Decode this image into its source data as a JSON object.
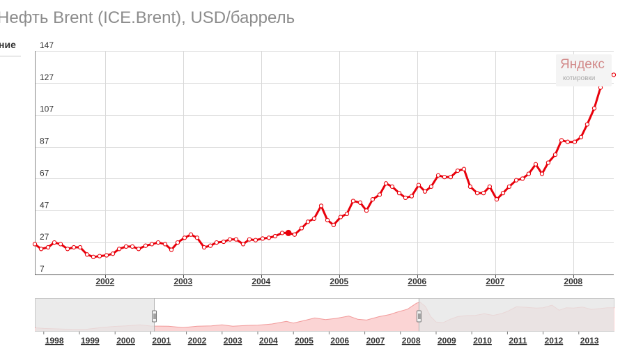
{
  "title": "Нефть Brent (ICE.Brent), USD/баррель",
  "side_tab_label": "ние",
  "logo": {
    "brand": "Яндекс",
    "subtitle": "котировки"
  },
  "colors": {
    "line": "#e8000b",
    "grid": "#d9d9d9",
    "nav_fill": "#fbd4d4",
    "nav_line": "#f29a9a",
    "nav_mask": "#e6e6e6"
  },
  "chart_data": [
    {
      "type": "line",
      "title": "Нефть Brent (ICE.Brent), USD/баррель",
      "xlabel": "",
      "ylabel": "",
      "ylim": [
        7,
        147
      ],
      "yticks": [
        7,
        27,
        47,
        67,
        87,
        107,
        127,
        147
      ],
      "xlim": [
        2001.1,
        2008.52
      ],
      "xticks": [
        {
          "label": "2002",
          "x": 2002.0
        },
        {
          "label": "2003",
          "x": 2003.0
        },
        {
          "label": "2004",
          "x": 2004.0
        },
        {
          "label": "2005",
          "x": 2005.0
        },
        {
          "label": "2006",
          "x": 2006.0
        },
        {
          "label": "2007",
          "x": 2007.0
        },
        {
          "label": "2008",
          "x": 2008.0
        }
      ],
      "grid": true,
      "highlighted_point": {
        "x": 2004.35,
        "y": 33
      },
      "series": [
        {
          "points": [
            [
              2001.1,
              26
            ],
            [
              2001.18,
              23
            ],
            [
              2001.27,
              24
            ],
            [
              2001.35,
              27
            ],
            [
              2001.43,
              26
            ],
            [
              2001.52,
              23
            ],
            [
              2001.6,
              24
            ],
            [
              2001.68,
              24
            ],
            [
              2001.77,
              19.5
            ],
            [
              2001.85,
              18
            ],
            [
              2001.93,
              18.5
            ],
            [
              2002.02,
              19
            ],
            [
              2002.1,
              20
            ],
            [
              2002.18,
              23
            ],
            [
              2002.27,
              24.5
            ],
            [
              2002.35,
              24.5
            ],
            [
              2002.43,
              23
            ],
            [
              2002.52,
              25
            ],
            [
              2002.6,
              26
            ],
            [
              2002.68,
              27
            ],
            [
              2002.77,
              26
            ],
            [
              2002.85,
              22.5
            ],
            [
              2002.93,
              27
            ],
            [
              2003.02,
              30
            ],
            [
              2003.1,
              32
            ],
            [
              2003.18,
              30
            ],
            [
              2003.27,
              24
            ],
            [
              2003.35,
              25
            ],
            [
              2003.43,
              27
            ],
            [
              2003.52,
              27.5
            ],
            [
              2003.6,
              29
            ],
            [
              2003.68,
              29
            ],
            [
              2003.77,
              26
            ],
            [
              2003.85,
              29
            ],
            [
              2003.93,
              28.5
            ],
            [
              2004.02,
              29.5
            ],
            [
              2004.1,
              30
            ],
            [
              2004.18,
              31
            ],
            [
              2004.27,
              33
            ],
            [
              2004.35,
              33
            ],
            [
              2004.43,
              32
            ],
            [
              2004.52,
              36
            ],
            [
              2004.6,
              40
            ],
            [
              2004.68,
              42
            ],
            [
              2004.77,
              50
            ],
            [
              2004.85,
              41
            ],
            [
              2004.93,
              38
            ],
            [
              2005.02,
              43
            ],
            [
              2005.1,
              45
            ],
            [
              2005.18,
              53
            ],
            [
              2005.27,
              52
            ],
            [
              2005.35,
              47
            ],
            [
              2005.43,
              54
            ],
            [
              2005.52,
              57
            ],
            [
              2005.6,
              64
            ],
            [
              2005.68,
              62
            ],
            [
              2005.77,
              58
            ],
            [
              2005.85,
              55
            ],
            [
              2005.93,
              56
            ],
            [
              2006.02,
              63
            ],
            [
              2006.1,
              59
            ],
            [
              2006.18,
              62
            ],
            [
              2006.27,
              69
            ],
            [
              2006.35,
              68
            ],
            [
              2006.43,
              68
            ],
            [
              2006.52,
              72
            ],
            [
              2006.6,
              73
            ],
            [
              2006.68,
              62
            ],
            [
              2006.77,
              58
            ],
            [
              2006.85,
              58
            ],
            [
              2006.93,
              62
            ],
            [
              2007.02,
              54
            ],
            [
              2007.1,
              58
            ],
            [
              2007.18,
              62
            ],
            [
              2007.27,
              66
            ],
            [
              2007.35,
              67
            ],
            [
              2007.43,
              70
            ],
            [
              2007.52,
              76
            ],
            [
              2007.6,
              70
            ],
            [
              2007.68,
              77
            ],
            [
              2007.77,
              82
            ],
            [
              2007.85,
              91
            ],
            [
              2007.93,
              90
            ],
            [
              2008.02,
              90
            ],
            [
              2008.1,
              93
            ],
            [
              2008.18,
              101
            ],
            [
              2008.27,
              111
            ],
            [
              2008.35,
              124
            ],
            [
              2008.43,
              133
            ],
            [
              2008.52,
              132
            ]
          ]
        }
      ]
    },
    {
      "type": "area",
      "xlim": [
        1997.75,
        2014.0
      ],
      "ylim": [
        0,
        150
      ],
      "xticks": [
        {
          "label": "1998",
          "x": 1998.0
        },
        {
          "label": "1999",
          "x": 1999.0
        },
        {
          "label": "2000",
          "x": 2000.0
        },
        {
          "label": "2001",
          "x": 2001.0
        },
        {
          "label": "2002",
          "x": 2002.0
        },
        {
          "label": "2003",
          "x": 2003.0
        },
        {
          "label": "2004",
          "x": 2004.0
        },
        {
          "label": "2005",
          "x": 2005.0
        },
        {
          "label": "2006",
          "x": 2006.0
        },
        {
          "label": "2007",
          "x": 2007.0
        },
        {
          "label": "2008",
          "x": 2008.0
        },
        {
          "label": "2009",
          "x": 2009.0
        },
        {
          "label": "2010",
          "x": 2010.0
        },
        {
          "label": "2011",
          "x": 2011.0
        },
        {
          "label": "2012",
          "x": 2012.0
        },
        {
          "label": "2013",
          "x": 2013.0
        }
      ],
      "selected_range": [
        2001.1,
        2008.52
      ],
      "series": [
        {
          "points": [
            [
              1997.75,
              18
            ],
            [
              1998.0,
              15
            ],
            [
              1998.5,
              12
            ],
            [
              1998.9,
              10
            ],
            [
              1999.2,
              11
            ],
            [
              1999.6,
              19
            ],
            [
              1999.95,
              24
            ],
            [
              2000.3,
              27
            ],
            [
              2000.7,
              32
            ],
            [
              2001.0,
              26
            ],
            [
              2001.5,
              25
            ],
            [
              2001.9,
              19
            ],
            [
              2002.3,
              25
            ],
            [
              2002.7,
              27
            ],
            [
              2003.0,
              32
            ],
            [
              2003.3,
              25
            ],
            [
              2003.7,
              29
            ],
            [
              2004.0,
              30
            ],
            [
              2004.4,
              36
            ],
            [
              2004.8,
              48
            ],
            [
              2005.0,
              40
            ],
            [
              2005.3,
              52
            ],
            [
              2005.6,
              64
            ],
            [
              2005.9,
              56
            ],
            [
              2006.2,
              62
            ],
            [
              2006.55,
              73
            ],
            [
              2006.8,
              58
            ],
            [
              2007.05,
              54
            ],
            [
              2007.4,
              70
            ],
            [
              2007.7,
              80
            ],
            [
              2007.9,
              91
            ],
            [
              2008.2,
              105
            ],
            [
              2008.45,
              133
            ],
            [
              2008.55,
              138
            ],
            [
              2008.7,
              118
            ],
            [
              2008.85,
              70
            ],
            [
              2009.0,
              45
            ],
            [
              2009.2,
              42
            ],
            [
              2009.4,
              58
            ],
            [
              2009.6,
              70
            ],
            [
              2009.85,
              75
            ],
            [
              2010.1,
              76
            ],
            [
              2010.35,
              84
            ],
            [
              2010.6,
              76
            ],
            [
              2010.85,
              85
            ],
            [
              2011.0,
              95
            ],
            [
              2011.25,
              116
            ],
            [
              2011.5,
              114
            ],
            [
              2011.8,
              110
            ],
            [
              2012.0,
              112
            ],
            [
              2012.25,
              124
            ],
            [
              2012.45,
              100
            ],
            [
              2012.65,
              112
            ],
            [
              2012.85,
              110
            ],
            [
              2013.1,
              115
            ],
            [
              2013.35,
              104
            ],
            [
              2013.6,
              108
            ],
            [
              2013.8,
              112
            ],
            [
              2014.0,
              112
            ]
          ]
        }
      ]
    }
  ]
}
